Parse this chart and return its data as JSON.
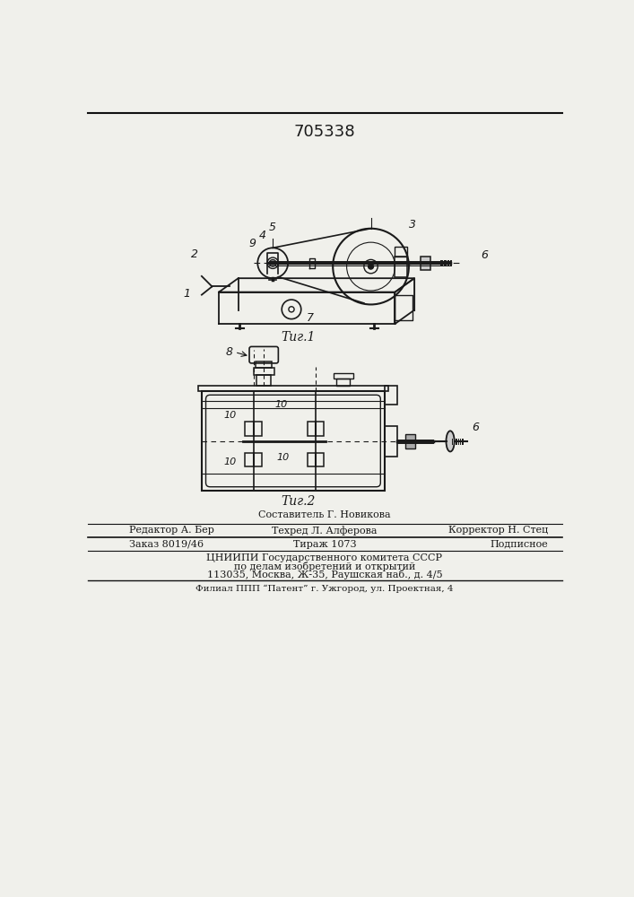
{
  "patent_number": "705338",
  "fig1_caption": "Τиг.1",
  "fig2_caption": "Τиг.2",
  "footer_line1": "Составитель Г. Новикова",
  "footer_line2_left": "Редактор А. Бер",
  "footer_line2_mid": "Техред Л. Алферова",
  "footer_line2_right": "Корректор Н. Стец",
  "footer_line3_left": "Заказ 8019/46",
  "footer_line3_mid": "Тираж 1073",
  "footer_line3_right": "Подписное",
  "footer_line4": "ЦНИИПИ Государственного комитета СССР",
  "footer_line5": "по делам изобретений и открытий",
  "footer_line6": "113035, Москва, Ж-35, Раушская наб., д. 4/5",
  "footer_line7": "Филиал ППП “Патент” г. Ужгород, ул. Проектная, 4",
  "bg_color": "#f0f0eb",
  "line_color": "#1a1a1a",
  "border_color": "#111111"
}
